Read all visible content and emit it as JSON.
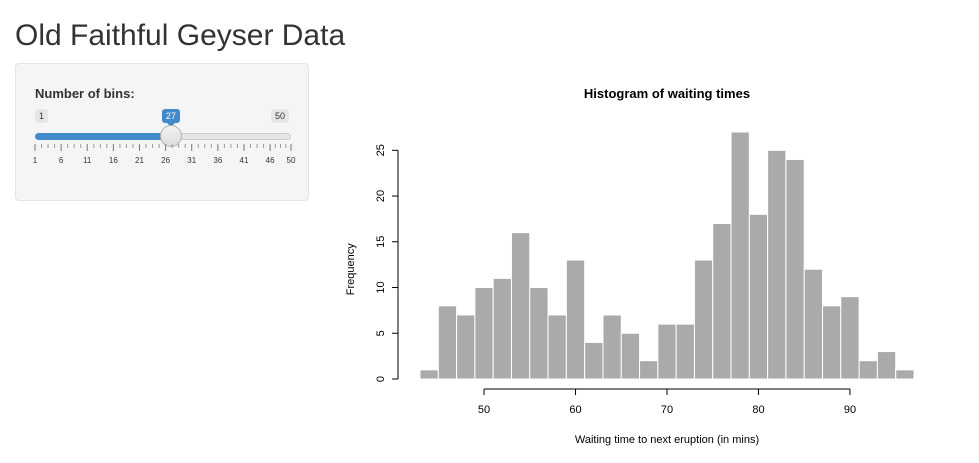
{
  "page": {
    "title": "Old Faithful Geyser Data"
  },
  "slider": {
    "label": "Number of bins:",
    "min": 1,
    "max": 50,
    "value": 27,
    "min_label": "1",
    "max_label": "50",
    "value_label": "27",
    "tick_labels": [
      "1",
      "6",
      "11",
      "16",
      "21",
      "26",
      "31",
      "36",
      "41",
      "46",
      "50"
    ],
    "accent_color": "#428bca"
  },
  "chart_data": {
    "type": "bar",
    "title": "Histogram of waiting times",
    "xlabel": "Waiting time to next eruption (in mins)",
    "ylabel": "Frequency",
    "bin_edges": [
      43,
      45,
      47,
      49,
      51,
      53,
      55,
      57,
      59,
      61,
      63,
      65,
      67,
      69,
      71,
      73,
      75,
      77,
      79,
      81,
      83,
      85,
      87,
      89,
      91,
      93,
      95,
      97
    ],
    "values": [
      1,
      8,
      7,
      10,
      11,
      16,
      10,
      7,
      13,
      4,
      7,
      5,
      2,
      6,
      6,
      13,
      17,
      27,
      18,
      25,
      24,
      12,
      8,
      9,
      2,
      3,
      1
    ],
    "xlim": [
      43,
      97
    ],
    "ylim": [
      0,
      27
    ],
    "xticks": [
      50,
      60,
      70,
      80,
      90
    ],
    "yticks": [
      0,
      5,
      10,
      15,
      20,
      25
    ],
    "bar_color": "#aaaaaa",
    "grid": false
  }
}
